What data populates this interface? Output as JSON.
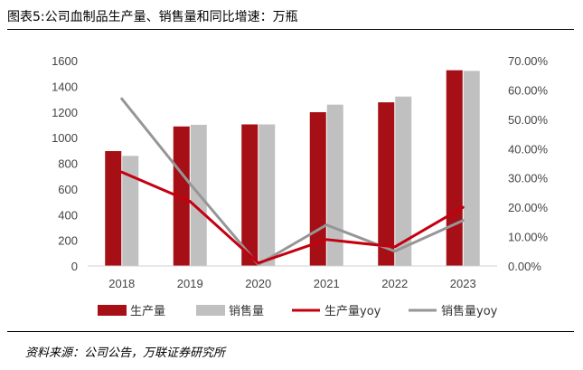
{
  "header": {
    "title": "图表5:公司血制品生产量、销售量和同比增速：万瓶"
  },
  "footer": {
    "source": "资料来源：公司公告，万联证券研究所"
  },
  "colors": {
    "production": "#A50F15",
    "sales": "#C0C0C0",
    "production_yoy": "#C40010",
    "sales_yoy": "#969696"
  },
  "chart_data": {
    "type": "bar",
    "title": "图表5:公司血制品生产量、销售量和同比增速：万瓶",
    "categories": [
      "2018",
      "2019",
      "2020",
      "2021",
      "2022",
      "2023"
    ],
    "series": [
      {
        "name": "生产量",
        "type": "bar",
        "axis": "left",
        "values": [
          895,
          1087,
          1103,
          1198,
          1275,
          1525
        ]
      },
      {
        "name": "销售量",
        "type": "bar",
        "axis": "left",
        "values": [
          858,
          1100,
          1103,
          1257,
          1320,
          1520
        ]
      },
      {
        "name": "生产量yoy",
        "type": "line",
        "axis": "right",
        "values": [
          0.32,
          0.22,
          0.01,
          0.09,
          0.065,
          0.2
        ]
      },
      {
        "name": "销售量yoy",
        "type": "line",
        "axis": "right",
        "values": [
          0.57,
          0.28,
          0.005,
          0.14,
          0.05,
          0.155
        ]
      }
    ],
    "yaxis_left": {
      "ylim": [
        0,
        1600
      ],
      "ticks": [
        "0",
        "200",
        "400",
        "600",
        "800",
        "1000",
        "1200",
        "1400",
        "1600"
      ]
    },
    "yaxis_right": {
      "ylim": [
        0,
        0.7
      ],
      "ticks": [
        "0.00%",
        "10.00%",
        "20.00%",
        "30.00%",
        "40.00%",
        "50.00%",
        "60.00%",
        "70.00%"
      ]
    },
    "legend": {
      "placement": "bottom",
      "items": [
        {
          "label": "生产量",
          "kind": "bar",
          "series": 0
        },
        {
          "label": "销售量",
          "kind": "bar",
          "series": 1
        },
        {
          "label": "生产量yoy",
          "kind": "line",
          "series": 2
        },
        {
          "label": "销售量yoy",
          "kind": "line",
          "series": 3
        }
      ]
    },
    "grid": false
  }
}
